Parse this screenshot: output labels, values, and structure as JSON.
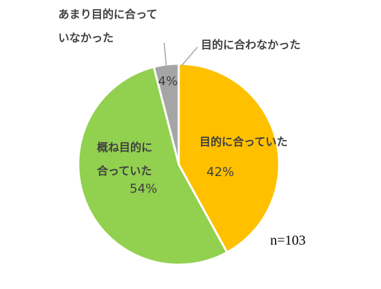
{
  "chart_data": {
    "type": "pie",
    "categories": [
      "目的に合っていた",
      "概ね目的に合っていた",
      "あまり目的に合っていなかった",
      "目的に合わなかった"
    ],
    "values": [
      42,
      54,
      4,
      0
    ],
    "value_labels": [
      "42%",
      "54%",
      "4%",
      null
    ],
    "colors": [
      "#FFC000",
      "#92D050",
      "#A5A5A5",
      "#5B9BD5"
    ],
    "annotation": "n=103"
  }
}
